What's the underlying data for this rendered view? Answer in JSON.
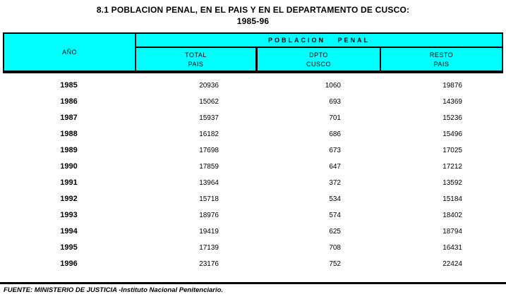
{
  "title": {
    "line1": "8.1  POBLACION PENAL, EN EL PAIS Y EN EL DEPARTAMENTO DE CUSCO:",
    "line2": "1985-96"
  },
  "table": {
    "year_header": "AÑO",
    "group_header": "POBLACION  PENAL",
    "columns": [
      {
        "line1": "TOTAL",
        "line2": "PAIS"
      },
      {
        "line1": "DPTO",
        "line2": "CUSCO"
      },
      {
        "line1": "RESTO",
        "line2": "PAIS"
      }
    ],
    "rows": [
      {
        "year": "1985",
        "total": "20936",
        "cusco": "1060",
        "resto": "19876"
      },
      {
        "year": "1986",
        "total": "15062",
        "cusco": "693",
        "resto": "14369"
      },
      {
        "year": "1987",
        "total": "15937",
        "cusco": "701",
        "resto": "15236"
      },
      {
        "year": "1988",
        "total": "16182",
        "cusco": "686",
        "resto": "15496"
      },
      {
        "year": "1989",
        "total": "17698",
        "cusco": "673",
        "resto": "17025"
      },
      {
        "year": "1990",
        "total": "17859",
        "cusco": "647",
        "resto": "17212"
      },
      {
        "year": "1991",
        "total": "13964",
        "cusco": "372",
        "resto": "13592"
      },
      {
        "year": "1992",
        "total": "15718",
        "cusco": "534",
        "resto": "15184"
      },
      {
        "year": "1993",
        "total": "18976",
        "cusco": "574",
        "resto": "18402"
      },
      {
        "year": "1994",
        "total": "19419",
        "cusco": "625",
        "resto": "18794"
      },
      {
        "year": "1995",
        "total": "17139",
        "cusco": "708",
        "resto": "16431"
      },
      {
        "year": "1996",
        "total": "23176",
        "cusco": "752",
        "resto": "22424"
      }
    ]
  },
  "footer": {
    "source": "FUENTE: MINISTERIO DE JUSTICIA -Instituto Nacional Penitenciario."
  },
  "colors": {
    "header_background": "#00FFFF",
    "border": "#000000",
    "page_background": "#FFFFFF"
  }
}
